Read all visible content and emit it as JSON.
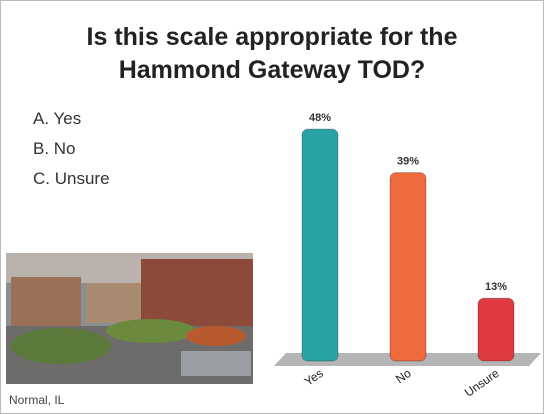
{
  "slide": {
    "options": [
      "A. Yes",
      "B. No",
      "C. Unsure"
    ],
    "photo_caption": "Normal, IL"
  },
  "chart_data": {
    "type": "bar",
    "title": "Is this scale appropriate for the Hammond Gateway TOD?",
    "categories": [
      "Yes",
      "No",
      "Unsure"
    ],
    "values": [
      48,
      39,
      13
    ],
    "value_labels": [
      "48%",
      "39%",
      "13%"
    ],
    "colors": [
      "#2aa3a6",
      "#ef6a3c",
      "#e03b3e"
    ]
  }
}
